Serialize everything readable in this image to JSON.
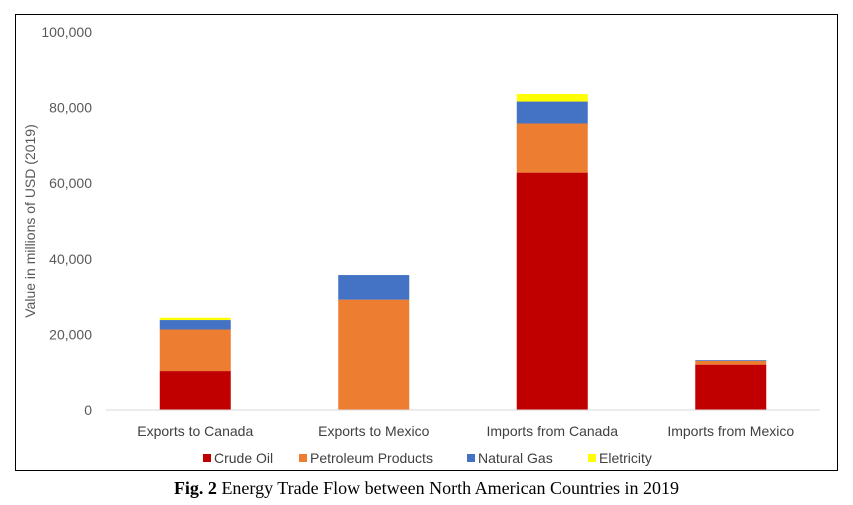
{
  "caption": {
    "label": "Fig. 2",
    "text": "Energy Trade Flow between North American Countries in 2019"
  },
  "chart_data": {
    "type": "bar",
    "stacked": true,
    "title": "",
    "xlabel": "",
    "ylabel": "Value in millions of USD (2019)",
    "ylim": [
      0,
      100000
    ],
    "yticks": [
      0,
      20000,
      40000,
      60000,
      80000,
      100000
    ],
    "ytick_labels": [
      "0",
      "20,000",
      "40,000",
      "60,000",
      "80,000",
      "100,000"
    ],
    "categories": [
      "Exports to Canada",
      "Exports to Mexico",
      "Imports from Canada",
      "Imports from Mexico"
    ],
    "series": [
      {
        "name": "Crude Oil",
        "color": "#c00000",
        "values": [
          10300,
          0,
          62800,
          12000
        ]
      },
      {
        "name": "Petroleum Products",
        "color": "#ed7d31",
        "values": [
          11000,
          29200,
          13000,
          1000
        ]
      },
      {
        "name": "Natural Gas",
        "color": "#4472c4",
        "values": [
          2500,
          6500,
          5800,
          200
        ]
      },
      {
        "name": "Eletricity",
        "color": "#ffff00",
        "values": [
          600,
          0,
          2000,
          0
        ]
      }
    ],
    "legend_position": "bottom",
    "grid": false
  }
}
